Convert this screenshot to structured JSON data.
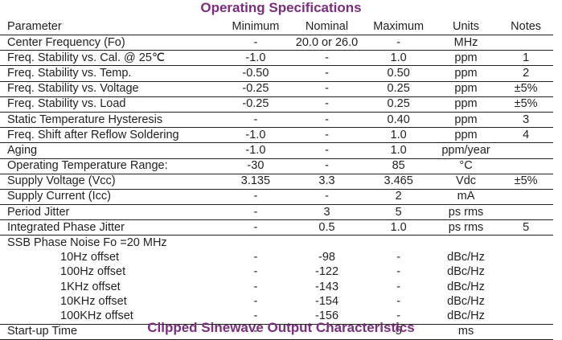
{
  "title": "Operating Specifications",
  "next_section_title": "Clipped Sinewave Output Characteristics",
  "headers": [
    "Parameter",
    "Minimum",
    "Nominal",
    "Maximum",
    "Units",
    "Notes"
  ],
  "rows": [
    [
      "Center Frequency (Fo)",
      "-",
      "20.0 or 26.0",
      "-",
      "MHz",
      ""
    ],
    [
      "Freq. Stability vs. Cal. @ 25℃",
      "-1.0",
      "-",
      "1.0",
      "ppm",
      "1"
    ],
    [
      "Freq. Stability vs. Temp.",
      "-0.50",
      "-",
      "0.50",
      "ppm",
      "2"
    ],
    [
      "Freq. Stability vs. Voltage",
      "-0.25",
      "-",
      "0.25",
      "ppm",
      "±5%"
    ],
    [
      "Freq. Stability vs. Load",
      "-0.25",
      "-",
      "0.25",
      "ppm",
      "±5%"
    ],
    [
      "Static Temperature Hysteresis",
      "-",
      "-",
      "0.40",
      "ppm",
      "3"
    ],
    [
      "Freq. Shift after Reflow Soldering",
      "-1.0",
      "-",
      "1.0",
      "ppm",
      "4"
    ],
    [
      "Aging",
      "-1.0",
      "-",
      "1.0",
      "ppm/year",
      ""
    ],
    [
      "Operating Temperature Range:",
      "-30",
      "-",
      "85",
      "°C",
      ""
    ],
    [
      "Supply Voltage (Vcc)",
      "3.135",
      "3.3",
      "3.465",
      "Vdc",
      "±5%"
    ],
    [
      "Supply Current (Icc)",
      "-",
      "-",
      "2",
      "mA",
      ""
    ],
    [
      "Period Jitter",
      "-",
      "3",
      "5",
      "ps rms",
      ""
    ],
    [
      "Integrated Phase Jitter",
      "-",
      "0.5",
      "1.0",
      "ps rms",
      "5"
    ]
  ],
  "phase_noise": {
    "label": "SSB Phase Noise Fo =20 MHz",
    "rows": [
      [
        "10Hz offset",
        "-",
        "-98",
        "-",
        "dBc/Hz",
        ""
      ],
      [
        "100Hz offset",
        "-",
        "-122",
        "-",
        "dBc/Hz",
        ""
      ],
      [
        "1KHz offset",
        "-",
        "-143",
        "-",
        "dBc/Hz",
        ""
      ],
      [
        "10KHz offset",
        "-",
        "-154",
        "-",
        "dBc/Hz",
        ""
      ],
      [
        "100KHz offset",
        "-",
        "-156",
        "-",
        "dBc/Hz",
        ""
      ]
    ]
  },
  "startup": [
    "Start-up Time",
    "-",
    "-",
    "5",
    "ms",
    ""
  ]
}
